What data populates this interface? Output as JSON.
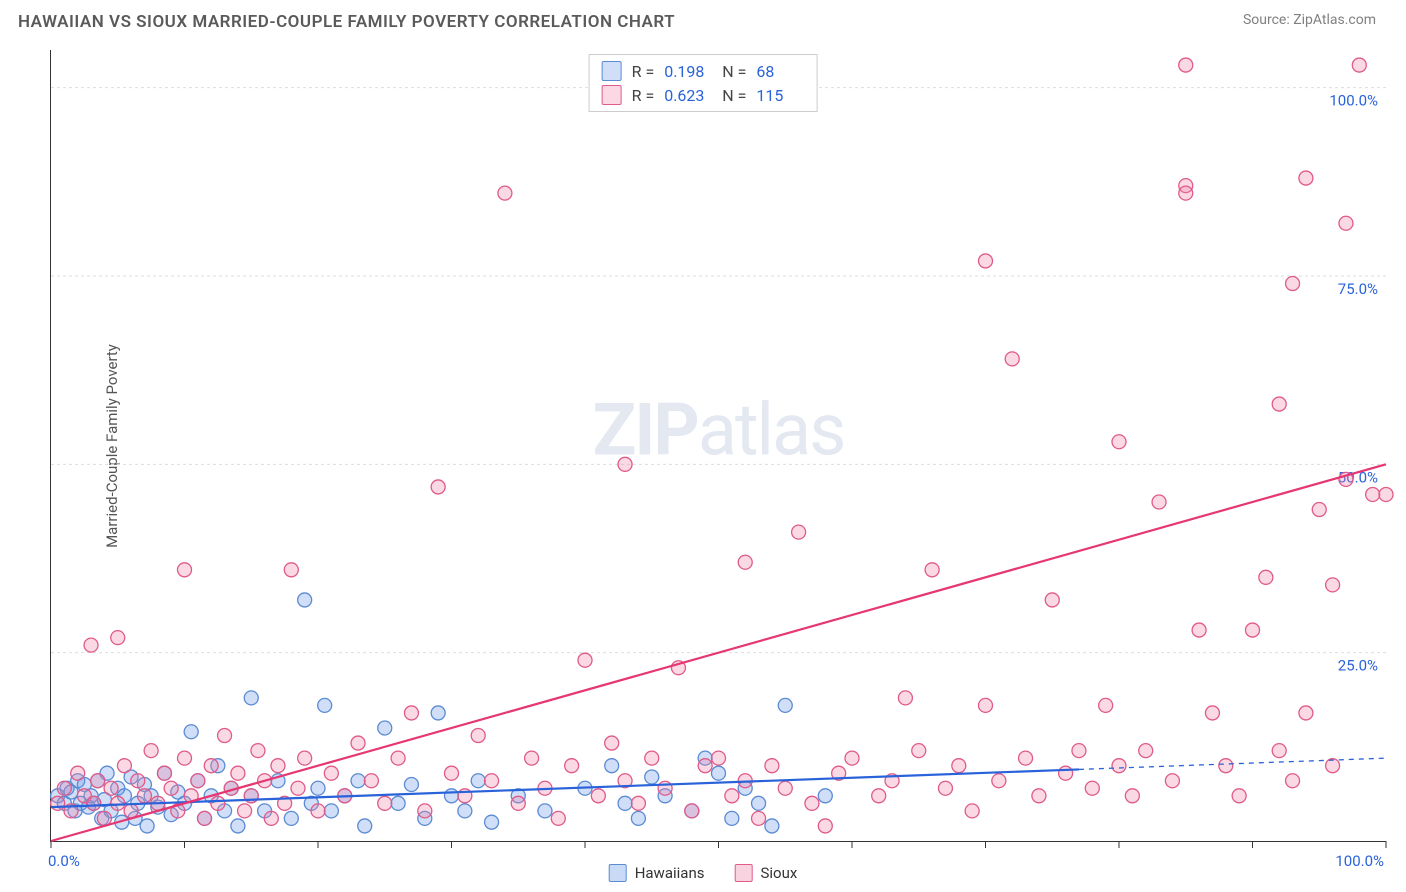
{
  "title": "HAWAIIAN VS SIOUX MARRIED-COUPLE FAMILY POVERTY CORRELATION CHART",
  "source": "Source: ZipAtlas.com",
  "ylabel": "Married-Couple Family Poverty",
  "watermark_bold": "ZIP",
  "watermark_light": "atlas",
  "chart": {
    "type": "scatter",
    "xlim": [
      0,
      100
    ],
    "ylim": [
      0,
      105
    ],
    "x_ticks": [
      0,
      10,
      20,
      30,
      40,
      50,
      60,
      70,
      80,
      90,
      100
    ],
    "y_ticks": [
      25,
      50,
      75,
      100
    ],
    "y_tick_labels": [
      "25.0%",
      "50.0%",
      "75.0%",
      "100.0%"
    ],
    "x_axis_label_start": "0.0%",
    "x_axis_label_end": "100.0%",
    "grid_color": "#dddddd",
    "background_color": "#ffffff",
    "marker_radius": 7,
    "marker_stroke_width": 1.3,
    "line_width": 2.2
  },
  "series": [
    {
      "name": "Hawaiians",
      "fill": "rgba(100,150,230,0.30)",
      "stroke": "#5b8bd4",
      "line_color": "#2962d9",
      "R": "0.198",
      "N": "68",
      "trend": {
        "x1": 0,
        "y1": 4.5,
        "x2": 77,
        "y2": 9.5,
        "dash_from_x": 77,
        "dash_to_x": 100,
        "dash_y2": 11.0
      },
      "points": [
        [
          0.5,
          6
        ],
        [
          1,
          5
        ],
        [
          1.2,
          7
        ],
        [
          1.5,
          6.5
        ],
        [
          1.8,
          4
        ],
        [
          2,
          8
        ],
        [
          2.2,
          5
        ],
        [
          2.5,
          7.5
        ],
        [
          2.8,
          4.5
        ],
        [
          3,
          6
        ],
        [
          3.2,
          5
        ],
        [
          3.5,
          8
        ],
        [
          3.8,
          3
        ],
        [
          4,
          5.5
        ],
        [
          4.2,
          9
        ],
        [
          4.5,
          4
        ],
        [
          5,
          7
        ],
        [
          5.3,
          2.5
        ],
        [
          5.5,
          6
        ],
        [
          6,
          8.5
        ],
        [
          6.3,
          3
        ],
        [
          6.5,
          5
        ],
        [
          7,
          7.5
        ],
        [
          7.2,
          2
        ],
        [
          7.5,
          6
        ],
        [
          8,
          4.5
        ],
        [
          8.5,
          9
        ],
        [
          9,
          3.5
        ],
        [
          9.5,
          6.5
        ],
        [
          10,
          5
        ],
        [
          10.5,
          14.5
        ],
        [
          11,
          8
        ],
        [
          11.5,
          3
        ],
        [
          12,
          6
        ],
        [
          12.5,
          10
        ],
        [
          13,
          4
        ],
        [
          13.5,
          7
        ],
        [
          14,
          2
        ],
        [
          15,
          19
        ],
        [
          15,
          6
        ],
        [
          16,
          4
        ],
        [
          17,
          8
        ],
        [
          18,
          3
        ],
        [
          19,
          32
        ],
        [
          19.5,
          5
        ],
        [
          20,
          7
        ],
        [
          20.5,
          18
        ],
        [
          21,
          4
        ],
        [
          22,
          6
        ],
        [
          23,
          8
        ],
        [
          23.5,
          2
        ],
        [
          25,
          15
        ],
        [
          26,
          5
        ],
        [
          27,
          7.5
        ],
        [
          28,
          3
        ],
        [
          29,
          17
        ],
        [
          30,
          6
        ],
        [
          31,
          4
        ],
        [
          32,
          8
        ],
        [
          33,
          2.5
        ],
        [
          35,
          6
        ],
        [
          37,
          4
        ],
        [
          40,
          7
        ],
        [
          42,
          10
        ],
        [
          43,
          5
        ],
        [
          44,
          3
        ],
        [
          45,
          8.5
        ],
        [
          46,
          6
        ],
        [
          48,
          4
        ],
        [
          49,
          11
        ],
        [
          50,
          9
        ],
        [
          51,
          3
        ],
        [
          52,
          7
        ],
        [
          53,
          5
        ],
        [
          54,
          2
        ],
        [
          55,
          18
        ],
        [
          58,
          6
        ]
      ]
    },
    {
      "name": "Sioux",
      "fill": "rgba(240,130,170,0.30)",
      "stroke": "#e05a8a",
      "line_color": "#e63772",
      "R": "0.623",
      "N": "115",
      "trend": {
        "x1": 0,
        "y1": 0,
        "x2": 100,
        "y2": 50
      },
      "points": [
        [
          0.5,
          5
        ],
        [
          1,
          7
        ],
        [
          1.5,
          4
        ],
        [
          2,
          9
        ],
        [
          2.5,
          6
        ],
        [
          3,
          26
        ],
        [
          3.2,
          5
        ],
        [
          3.5,
          8
        ],
        [
          4,
          3
        ],
        [
          4.5,
          7
        ],
        [
          5,
          27
        ],
        [
          5,
          5
        ],
        [
          5.5,
          10
        ],
        [
          6,
          4
        ],
        [
          6.5,
          8
        ],
        [
          7,
          6
        ],
        [
          7.5,
          12
        ],
        [
          8,
          5
        ],
        [
          8.5,
          9
        ],
        [
          9,
          7
        ],
        [
          9.5,
          4
        ],
        [
          10,
          11
        ],
        [
          10,
          36
        ],
        [
          10.5,
          6
        ],
        [
          11,
          8
        ],
        [
          11.5,
          3
        ],
        [
          12,
          10
        ],
        [
          12.5,
          5
        ],
        [
          13,
          14
        ],
        [
          13.5,
          7
        ],
        [
          14,
          9
        ],
        [
          14.5,
          4
        ],
        [
          15,
          6
        ],
        [
          15.5,
          12
        ],
        [
          16,
          8
        ],
        [
          16.5,
          3
        ],
        [
          17,
          10
        ],
        [
          17.5,
          5
        ],
        [
          18,
          36
        ],
        [
          18.5,
          7
        ],
        [
          19,
          11
        ],
        [
          20,
          4
        ],
        [
          21,
          9
        ],
        [
          22,
          6
        ],
        [
          23,
          13
        ],
        [
          24,
          8
        ],
        [
          25,
          5
        ],
        [
          26,
          11
        ],
        [
          27,
          17
        ],
        [
          28,
          4
        ],
        [
          29,
          47
        ],
        [
          30,
          9
        ],
        [
          31,
          6
        ],
        [
          32,
          14
        ],
        [
          33,
          8
        ],
        [
          34,
          86
        ],
        [
          35,
          5
        ],
        [
          36,
          11
        ],
        [
          37,
          7
        ],
        [
          38,
          3
        ],
        [
          39,
          10
        ],
        [
          40,
          24
        ],
        [
          41,
          6
        ],
        [
          42,
          13
        ],
        [
          43,
          50
        ],
        [
          43,
          8
        ],
        [
          44,
          5
        ],
        [
          45,
          11
        ],
        [
          46,
          7
        ],
        [
          47,
          23
        ],
        [
          48,
          4
        ],
        [
          49,
          10
        ],
        [
          50,
          11
        ],
        [
          51,
          6
        ],
        [
          52,
          37
        ],
        [
          52,
          8
        ],
        [
          53,
          3
        ],
        [
          54,
          10
        ],
        [
          55,
          7
        ],
        [
          56,
          41
        ],
        [
          57,
          5
        ],
        [
          58,
          2
        ],
        [
          59,
          9
        ],
        [
          60,
          11
        ],
        [
          62,
          6
        ],
        [
          63,
          8
        ],
        [
          64,
          19
        ],
        [
          65,
          12
        ],
        [
          66,
          36
        ],
        [
          67,
          7
        ],
        [
          68,
          10
        ],
        [
          69,
          4
        ],
        [
          70,
          77
        ],
        [
          70,
          18
        ],
        [
          71,
          8
        ],
        [
          72,
          64
        ],
        [
          73,
          11
        ],
        [
          74,
          6
        ],
        [
          75,
          32
        ],
        [
          76,
          9
        ],
        [
          77,
          12
        ],
        [
          78,
          7
        ],
        [
          79,
          18
        ],
        [
          80,
          53
        ],
        [
          80,
          10
        ],
        [
          81,
          6
        ],
        [
          82,
          12
        ],
        [
          83,
          45
        ],
        [
          84,
          8
        ],
        [
          85,
          87
        ],
        [
          85,
          86
        ],
        [
          85,
          103
        ],
        [
          86,
          28
        ],
        [
          87,
          17
        ],
        [
          88,
          10
        ],
        [
          89,
          6
        ],
        [
          90,
          28
        ],
        [
          91,
          35
        ],
        [
          92,
          58
        ],
        [
          92,
          12
        ],
        [
          93,
          74
        ],
        [
          93,
          8
        ],
        [
          94,
          17
        ],
        [
          94,
          88
        ],
        [
          95,
          44
        ],
        [
          96,
          10
        ],
        [
          96,
          34
        ],
        [
          97,
          48
        ],
        [
          97,
          82
        ],
        [
          98,
          103
        ],
        [
          99,
          46
        ],
        [
          100,
          46
        ]
      ]
    }
  ],
  "bottom_legend": [
    {
      "name": "Hawaiians",
      "fill": "rgba(100,150,230,0.35)",
      "stroke": "#5b8bd4"
    },
    {
      "name": "Sioux",
      "fill": "rgba(240,130,170,0.35)",
      "stroke": "#e05a8a"
    }
  ]
}
